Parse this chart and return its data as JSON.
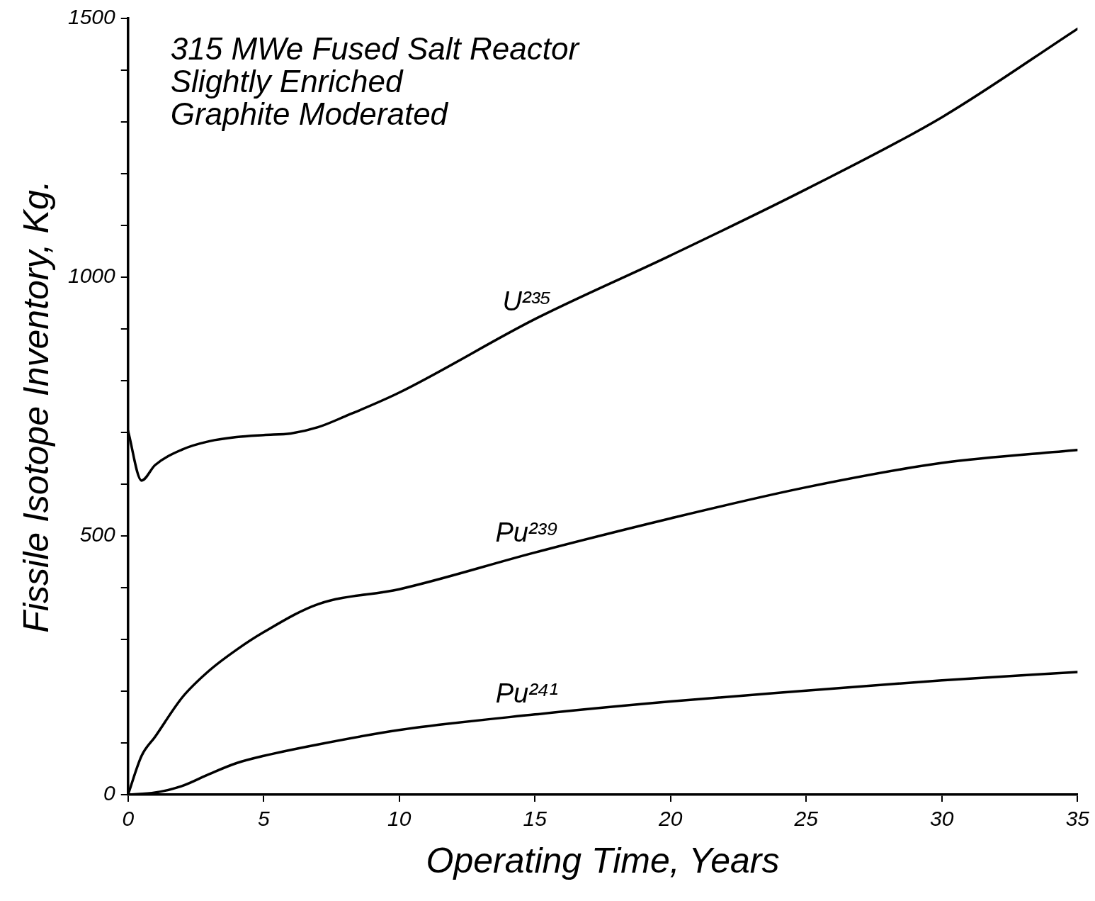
{
  "chart_data": {
    "type": "line",
    "title": "315 MWe Fused Salt Reactor",
    "subtitle": "Slightly Enriched\nGraphite Moderated",
    "xlabel": "Operating Time, Years",
    "ylabel": "Fissile Isotope Inventory, Kg.",
    "xlim": [
      0,
      35
    ],
    "xticks": [
      0,
      5,
      10,
      15,
      20,
      25,
      30,
      35
    ],
    "ylim": [
      0,
      1500
    ],
    "yticks": [
      0,
      {
        "value": 100,
        "label": null
      },
      {
        "value": 200,
        "label": null
      },
      {
        "value": 300,
        "label": null
      },
      {
        "value": 400,
        "label": null
      },
      500,
      {
        "value": 600,
        "label": null
      },
      {
        "value": 700,
        "label": null
      },
      {
        "value": 800,
        "label": null
      },
      {
        "value": 900,
        "label": null
      },
      1000,
      {
        "value": 1100,
        "label": null
      },
      {
        "value": 1200,
        "label": null
      },
      {
        "value": 1300,
        "label": null
      },
      {
        "value": 1400,
        "label": null
      },
      1500
    ],
    "grid": false,
    "legend": false,
    "marker": "none",
    "line_style": "solid",
    "series": [
      {
        "name": "U²³⁵",
        "color": "#000000",
        "x": [
          0,
          0.5,
          1,
          2,
          3,
          4,
          5,
          6,
          7,
          8,
          10,
          15,
          20,
          25,
          30,
          35
        ],
        "values": [
          703,
          607,
          637,
          667,
          683,
          691,
          695,
          698,
          710,
          731,
          777,
          919,
          1042,
          1170,
          1309,
          1480
        ]
      },
      {
        "name": "Pu²³⁹",
        "color": "#000000",
        "x": [
          0,
          0.5,
          1,
          2,
          3,
          4,
          5,
          7,
          10,
          15,
          20,
          25,
          30,
          35
        ],
        "values": [
          0,
          75,
          112,
          188,
          240,
          280,
          314,
          368,
          397,
          468,
          534,
          594,
          641,
          666
        ]
      },
      {
        "name": "Pu²⁴¹",
        "color": "#000000",
        "x": [
          0,
          1,
          2,
          3,
          4,
          5,
          7,
          10,
          15,
          20,
          25,
          30,
          35
        ],
        "values": [
          0,
          4,
          17,
          40,
          61,
          75,
          97,
          125,
          155,
          180,
          201,
          221,
          237
        ]
      }
    ]
  }
}
